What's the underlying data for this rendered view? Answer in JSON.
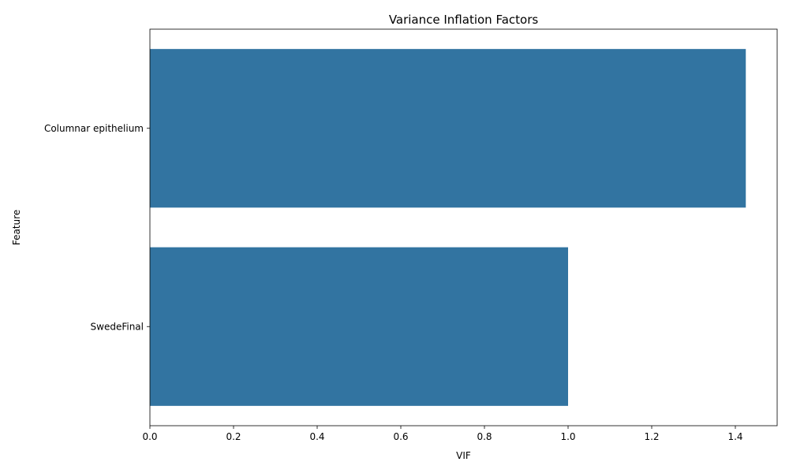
{
  "chart_data": {
    "type": "bar",
    "orientation": "horizontal",
    "title": "Variance Inflation Factors",
    "xlabel": "VIF",
    "ylabel": "Feature",
    "categories": [
      "Columnar epithelium",
      "SwedeFinal"
    ],
    "values": [
      1.425,
      1.0
    ],
    "xlim": [
      0,
      1.5
    ],
    "xticks": [
      0.0,
      0.2,
      0.4,
      0.6,
      0.8,
      1.0,
      1.2,
      1.4
    ],
    "xtick_labels": [
      "0.0",
      "0.2",
      "0.4",
      "0.6",
      "0.8",
      "1.0",
      "1.2",
      "1.4"
    ],
    "grid": false,
    "legend": false,
    "bar_color": "#3274a1"
  }
}
